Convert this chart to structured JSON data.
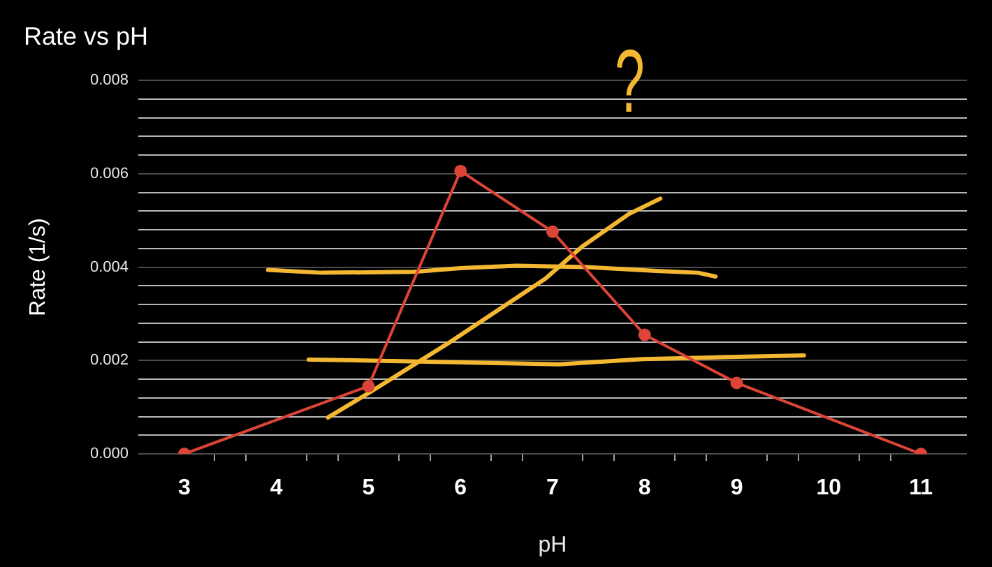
{
  "chart_data": {
    "type": "line",
    "title": "Rate vs pH",
    "xlabel": "pH",
    "ylabel": "Rate (1/s)",
    "annotations": [
      "?"
    ],
    "xlim": [
      2.5,
      11.5
    ],
    "xticks": [
      3,
      {
        "value": 3.33,
        "label": null
      },
      {
        "value": 3.67,
        "label": null
      },
      4,
      {
        "value": 4.33,
        "label": null
      },
      {
        "value": 4.67,
        "label": null
      },
      5,
      {
        "value": 5.33,
        "label": null
      },
      {
        "value": 5.67,
        "label": null
      },
      6,
      {
        "value": 6.33,
        "label": null
      },
      {
        "value": 6.67,
        "label": null
      },
      7,
      {
        "value": 7.33,
        "label": null
      },
      {
        "value": 7.67,
        "label": null
      },
      8,
      {
        "value": 8.33,
        "label": null
      },
      {
        "value": 8.67,
        "label": null
      },
      9,
      {
        "value": 9.33,
        "label": null
      },
      {
        "value": 9.67,
        "label": null
      },
      10,
      {
        "value": 10.33,
        "label": null
      },
      {
        "value": 10.67,
        "label": null
      },
      11
    ],
    "ylim": [
      0,
      0.008
    ],
    "yticks": [
      {
        "value": 0,
        "label": "0.000"
      },
      {
        "value": 0.0004,
        "label": null
      },
      {
        "value": 0.0008,
        "label": null
      },
      {
        "value": 0.0012,
        "label": null
      },
      {
        "value": 0.0016,
        "label": null
      },
      0.002,
      {
        "value": 0.0024,
        "label": null
      },
      {
        "value": 0.0028,
        "label": null
      },
      {
        "value": 0.0032,
        "label": null
      },
      {
        "value": 0.0036,
        "label": null
      },
      0.004,
      {
        "value": 0.0044,
        "label": null
      },
      {
        "value": 0.0048,
        "label": null
      },
      {
        "value": 0.0052,
        "label": null
      },
      {
        "value": 0.0056,
        "label": null
      },
      0.006,
      {
        "value": 0.0064,
        "label": null
      },
      {
        "value": 0.0068,
        "label": null
      },
      {
        "value": 0.0072,
        "label": null
      },
      {
        "value": 0.0076,
        "label": null
      },
      0.008
    ],
    "grid": "y",
    "marker": "circle",
    "series": [
      {
        "color": "#db4437",
        "x": [
          3,
          5,
          6,
          7,
          8,
          9,
          11
        ],
        "values": [
          0,
          0.00145,
          0.00606,
          0.00476,
          0.00255,
          0.00152,
          0
        ]
      },
      {
        "color": "#f4b731",
        "marker": "none",
        "x": [
          3.91,
          4.49,
          5.5,
          6.0,
          6.61,
          7.37,
          8.13,
          8.58,
          8.77
        ],
        "values": [
          0.00394,
          0.00388,
          0.0039,
          0.00398,
          0.00403,
          0.004,
          0.00392,
          0.00388,
          0.0038
        ]
      },
      {
        "color": "#f4b731",
        "marker": "none",
        "x": [
          4.35,
          5.55,
          6.31,
          7.07,
          7.98,
          8.84,
          9.73
        ],
        "values": [
          0.00202,
          0.00198,
          0.00195,
          0.00192,
          0.00203,
          0.00207,
          0.00211
        ]
      },
      {
        "color": "#f4b731",
        "marker": "none",
        "x": [
          4.56,
          5.04,
          5.55,
          5.85,
          6.46,
          6.92,
          7.32,
          7.83,
          8.17
        ],
        "values": [
          0.00078,
          0.00135,
          0.00198,
          0.00235,
          0.00315,
          0.00375,
          0.00444,
          0.00514,
          0.00547
        ]
      }
    ]
  }
}
